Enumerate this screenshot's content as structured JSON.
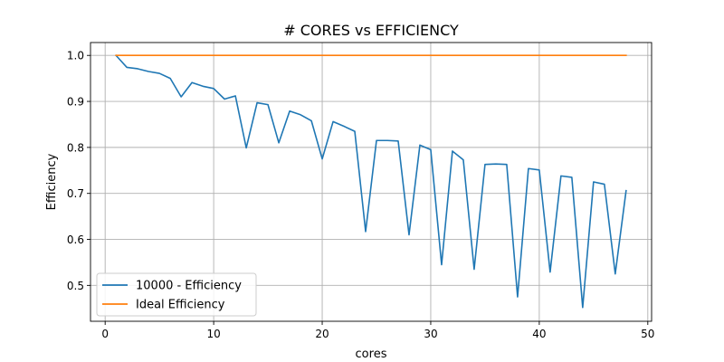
{
  "chart_data": {
    "type": "line",
    "title": "# CORES vs EFFICIENCY",
    "xlabel": "cores",
    "ylabel": "Efficiency",
    "xlim": [
      -1.35,
      50.35
    ],
    "ylim": [
      0.422,
      1.028
    ],
    "xticks": [
      0,
      10,
      20,
      30,
      40,
      50
    ],
    "yticks": [
      0.5,
      0.6,
      0.7,
      0.8,
      0.9,
      1.0
    ],
    "xtick_labels": [
      "0",
      "10",
      "20",
      "30",
      "40",
      "50"
    ],
    "ytick_labels": [
      "0.5",
      "0.6",
      "0.7",
      "0.8",
      "0.9",
      "1.0"
    ],
    "grid": true,
    "legend_position": "lower-left",
    "series": [
      {
        "name": "10000 - Efficiency",
        "color": "#1f77b4",
        "x": [
          1,
          2,
          3,
          4,
          5,
          6,
          7,
          8,
          9,
          10,
          11,
          12,
          13,
          14,
          15,
          16,
          17,
          18,
          19,
          20,
          21,
          22,
          23,
          24,
          25,
          26,
          27,
          28,
          29,
          30,
          31,
          32,
          33,
          34,
          35,
          36,
          37,
          38,
          39,
          40,
          41,
          42,
          43,
          44,
          45,
          46,
          47,
          48
        ],
        "y": [
          1.0,
          0.974,
          0.971,
          0.965,
          0.961,
          0.95,
          0.91,
          0.941,
          0.933,
          0.928,
          0.905,
          0.912,
          0.799,
          0.897,
          0.893,
          0.81,
          0.879,
          0.871,
          0.858,
          0.775,
          0.856,
          0.846,
          0.835,
          0.617,
          0.815,
          0.815,
          0.814,
          0.61,
          0.805,
          0.795,
          0.545,
          0.792,
          0.773,
          0.535,
          0.763,
          0.764,
          0.763,
          0.475,
          0.754,
          0.751,
          0.529,
          0.738,
          0.735,
          0.452,
          0.725,
          0.72,
          0.525,
          0.706
        ]
      },
      {
        "name": "Ideal Efficiency",
        "color": "#ff7f0e",
        "x": [
          1,
          48
        ],
        "y": [
          1.0,
          1.0
        ]
      }
    ]
  }
}
